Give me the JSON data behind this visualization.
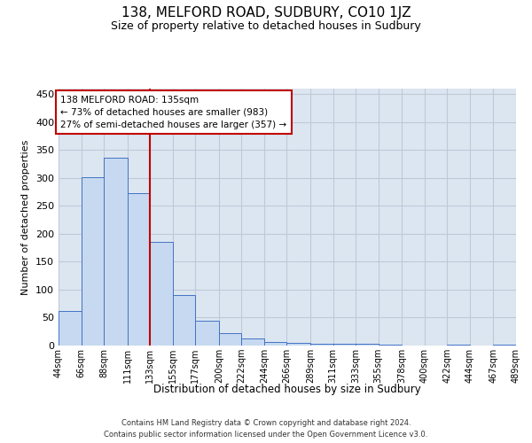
{
  "title": "138, MELFORD ROAD, SUDBURY, CO10 1JZ",
  "subtitle": "Size of property relative to detached houses in Sudbury",
  "xlabel": "Distribution of detached houses by size in Sudbury",
  "ylabel": "Number of detached properties",
  "footer_line1": "Contains HM Land Registry data © Crown copyright and database right 2024.",
  "footer_line2": "Contains public sector information licensed under the Open Government Licence v3.0.",
  "annotation_line1": "138 MELFORD ROAD: 135sqm",
  "annotation_line2": "← 73% of detached houses are smaller (983)",
  "annotation_line3": "27% of semi-detached houses are larger (357) →",
  "property_line_x": 133,
  "bar_left_edges": [
    44,
    66,
    88,
    111,
    133,
    155,
    177,
    200,
    222,
    244,
    266,
    289,
    311,
    333,
    355,
    378,
    400,
    422,
    444,
    467
  ],
  "bar_widths": [
    22,
    22,
    23,
    22,
    22,
    22,
    23,
    22,
    22,
    22,
    23,
    22,
    22,
    22,
    23,
    22,
    22,
    22,
    23,
    22
  ],
  "bar_heights": [
    62,
    302,
    337,
    273,
    185,
    90,
    45,
    23,
    12,
    7,
    4,
    3,
    3,
    3,
    1,
    0,
    0,
    1,
    0,
    1
  ],
  "bar_color": "#c6d9f0",
  "bar_edge_color": "#4472c4",
  "property_line_color": "#c00000",
  "annotation_box_color": "#c00000",
  "grid_color": "#c0c8d8",
  "ylim": [
    0,
    460
  ],
  "yticks": [
    0,
    50,
    100,
    150,
    200,
    250,
    300,
    350,
    400,
    450
  ],
  "x_tick_labels": [
    "44sqm",
    "66sqm",
    "88sqm",
    "111sqm",
    "133sqm",
    "155sqm",
    "177sqm",
    "200sqm",
    "222sqm",
    "244sqm",
    "266sqm",
    "289sqm",
    "311sqm",
    "333sqm",
    "355sqm",
    "378sqm",
    "400sqm",
    "422sqm",
    "444sqm",
    "467sqm",
    "489sqm"
  ],
  "background_color": "#dce6f1"
}
